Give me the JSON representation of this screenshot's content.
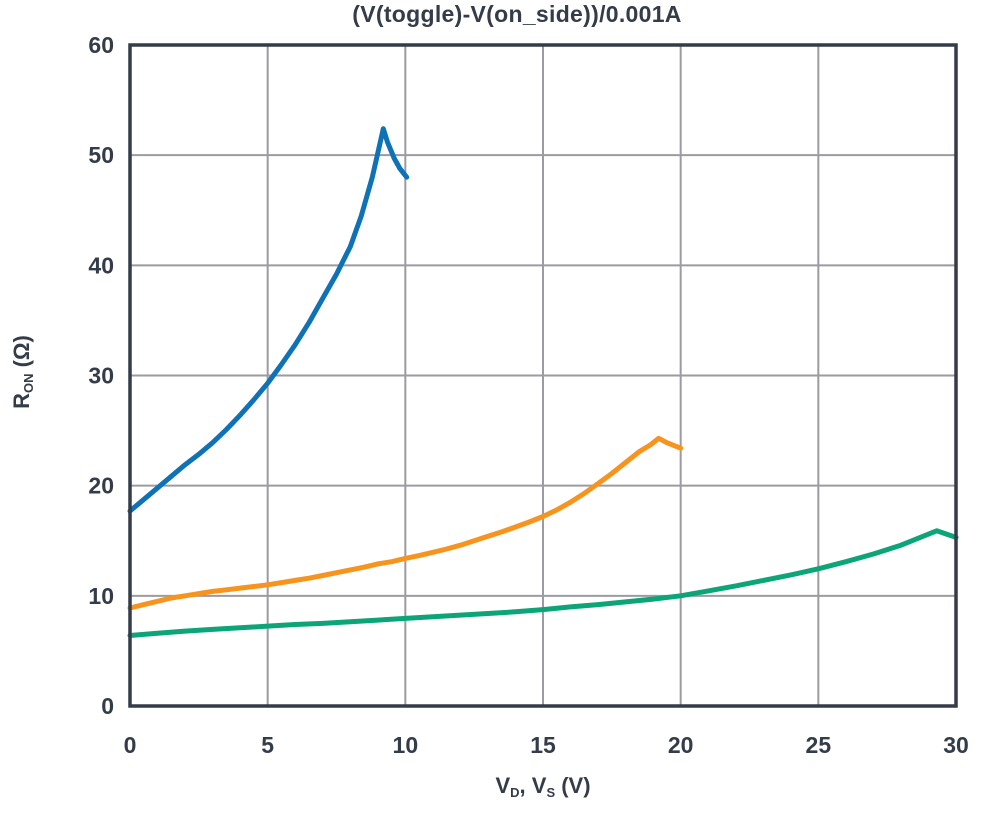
{
  "header": {
    "title": "(V(toggle)-V(on_side))/0.001A"
  },
  "axes": {
    "y_label": {
      "base": "R",
      "sub": "ON",
      "unit": " (Ω)"
    },
    "x_label": {
      "v1": "V",
      "sub1": "D",
      "comma": ", ",
      "v2": "V",
      "sub2": "S",
      "unit": " (V)"
    }
  },
  "chart_data": {
    "type": "line",
    "title": "(V(toggle)-V(on_side))/0.001A",
    "xlabel": "V_D, V_S (V)",
    "ylabel": "R_ON (Ω)",
    "xlim": [
      0,
      30
    ],
    "ylim": [
      0,
      60
    ],
    "xticks": [
      0,
      5,
      10,
      15,
      20,
      25,
      30
    ],
    "yticks": [
      0,
      10,
      20,
      30,
      40,
      50,
      60
    ],
    "grid": true,
    "legend_position": "none",
    "styles": {
      "background": "#ffffff",
      "grid_color": "#9b9ba1",
      "axis_color": "#343b49",
      "text_color": "#343b49",
      "line_width": 5
    },
    "series": [
      {
        "name": "curve-1",
        "color": "#0f72b7",
        "points": [
          [
            0,
            17.7
          ],
          [
            0.5,
            18.75
          ],
          [
            1,
            19.8
          ],
          [
            1.5,
            20.85
          ],
          [
            2,
            21.9
          ],
          [
            2.5,
            22.85
          ],
          [
            3,
            23.9
          ],
          [
            3.5,
            25.1
          ],
          [
            4,
            26.4
          ],
          [
            4.5,
            27.8
          ],
          [
            5,
            29.3
          ],
          [
            5.5,
            31.0
          ],
          [
            6,
            32.8
          ],
          [
            6.5,
            34.8
          ],
          [
            7,
            37.0
          ],
          [
            7.5,
            39.2
          ],
          [
            8,
            41.7
          ],
          [
            8.4,
            44.5
          ],
          [
            8.8,
            48.0
          ],
          [
            9.0,
            50.2
          ],
          [
            9.2,
            52.4
          ],
          [
            9.35,
            51.2
          ],
          [
            9.6,
            49.7
          ],
          [
            9.8,
            48.8
          ],
          [
            10.05,
            48.0
          ]
        ]
      },
      {
        "name": "curve-2",
        "color": "#f7941e",
        "points": [
          [
            0,
            8.9
          ],
          [
            0.5,
            9.2
          ],
          [
            1,
            9.5
          ],
          [
            1.5,
            9.8
          ],
          [
            2,
            10.0
          ],
          [
            2.5,
            10.2
          ],
          [
            3,
            10.4
          ],
          [
            3.5,
            10.55
          ],
          [
            4,
            10.7
          ],
          [
            4.5,
            10.85
          ],
          [
            5,
            11.0
          ],
          [
            5.5,
            11.2
          ],
          [
            6,
            11.4
          ],
          [
            6.5,
            11.6
          ],
          [
            7,
            11.85
          ],
          [
            7.5,
            12.1
          ],
          [
            8,
            12.35
          ],
          [
            8.5,
            12.6
          ],
          [
            9,
            12.9
          ],
          [
            9.5,
            13.1
          ],
          [
            10,
            13.4
          ],
          [
            10.5,
            13.65
          ],
          [
            11,
            13.95
          ],
          [
            11.5,
            14.25
          ],
          [
            12,
            14.6
          ],
          [
            12.5,
            15.0
          ],
          [
            13,
            15.4
          ],
          [
            13.5,
            15.8
          ],
          [
            14,
            16.25
          ],
          [
            14.5,
            16.7
          ],
          [
            15,
            17.2
          ],
          [
            15.5,
            17.8
          ],
          [
            16,
            18.5
          ],
          [
            16.5,
            19.3
          ],
          [
            17,
            20.2
          ],
          [
            17.5,
            21.1
          ],
          [
            18,
            22.1
          ],
          [
            18.5,
            23.1
          ],
          [
            18.9,
            23.7
          ],
          [
            19.2,
            24.3
          ],
          [
            19.5,
            23.9
          ],
          [
            20,
            23.4
          ]
        ]
      },
      {
        "name": "curve-3",
        "color": "#0ba578",
        "points": [
          [
            0,
            6.4
          ],
          [
            1,
            6.6
          ],
          [
            2,
            6.8
          ],
          [
            3,
            6.95
          ],
          [
            4,
            7.1
          ],
          [
            5,
            7.25
          ],
          [
            6,
            7.4
          ],
          [
            7,
            7.5
          ],
          [
            8,
            7.65
          ],
          [
            9,
            7.8
          ],
          [
            10,
            7.95
          ],
          [
            11,
            8.1
          ],
          [
            12,
            8.25
          ],
          [
            13,
            8.4
          ],
          [
            14,
            8.55
          ],
          [
            15,
            8.75
          ],
          [
            16,
            9.0
          ],
          [
            17,
            9.2
          ],
          [
            18,
            9.45
          ],
          [
            19,
            9.7
          ],
          [
            20,
            10.0
          ],
          [
            21,
            10.45
          ],
          [
            22,
            10.9
          ],
          [
            23,
            11.4
          ],
          [
            24,
            11.9
          ],
          [
            25,
            12.45
          ],
          [
            26,
            13.1
          ],
          [
            27,
            13.8
          ],
          [
            28,
            14.6
          ],
          [
            28.8,
            15.4
          ],
          [
            29.3,
            15.9
          ],
          [
            30,
            15.3
          ]
        ]
      }
    ]
  }
}
